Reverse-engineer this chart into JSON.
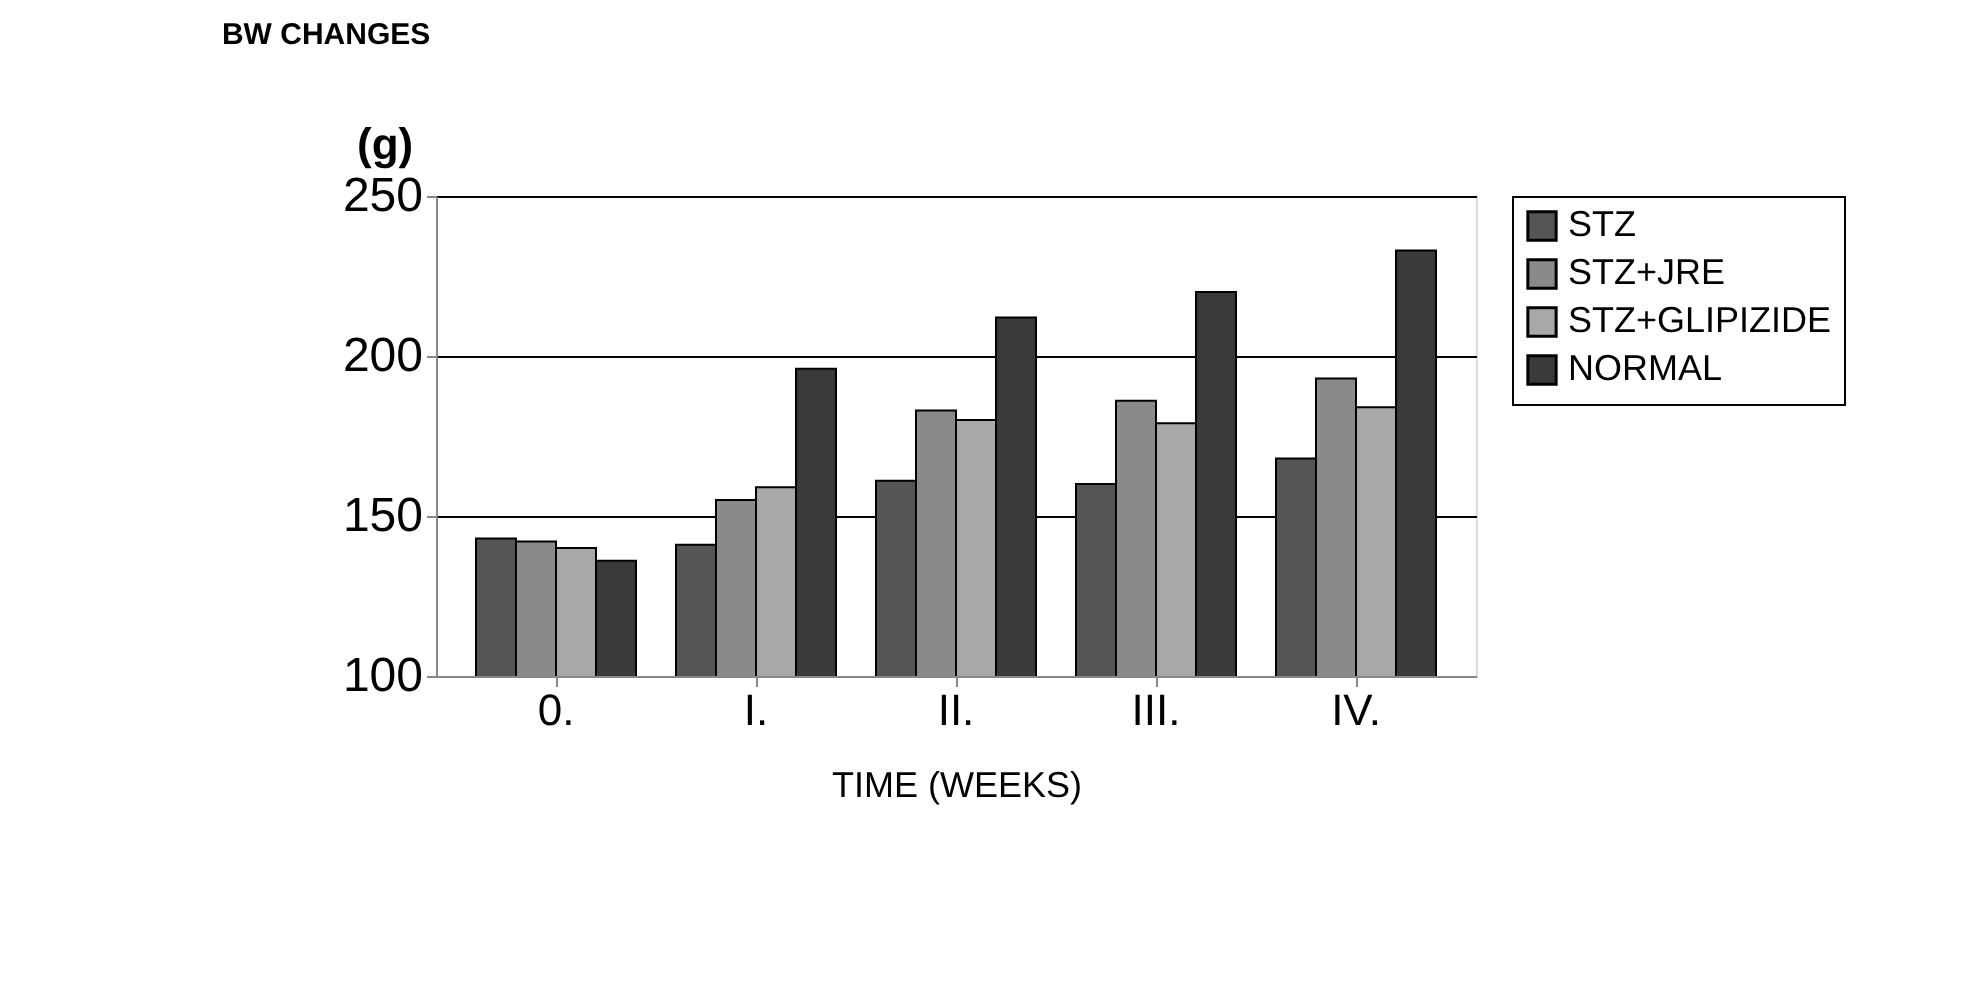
{
  "chart_data": {
    "type": "bar",
    "title": "BW CHANGES",
    "ylabel": "(g)",
    "xlabel": "TIME (WEEKS)",
    "categories": [
      "0.",
      "I.",
      "II.",
      "III.",
      "IV."
    ],
    "series": [
      {
        "name": "STZ",
        "color": "#555555",
        "values": [
          143,
          141,
          161,
          160,
          168
        ]
      },
      {
        "name": "STZ+JRE",
        "color": "#8a8a8a",
        "values": [
          142,
          155,
          183,
          186,
          193
        ]
      },
      {
        "name": "STZ+GLIPIZIDE",
        "color": "#a8a8a8",
        "values": [
          140,
          159,
          180,
          179,
          184
        ]
      },
      {
        "name": "NORMAL",
        "color": "#3a3a3a",
        "values": [
          136,
          196,
          212,
          220,
          233
        ]
      }
    ],
    "ylim": [
      100,
      250
    ],
    "yticks": [
      100,
      150,
      200,
      250
    ],
    "grid": "y",
    "legend": "top right"
  }
}
